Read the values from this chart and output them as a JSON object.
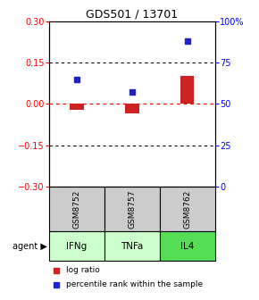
{
  "title": "GDS501 / 13701",
  "samples": [
    "GSM8752",
    "GSM8757",
    "GSM8762"
  ],
  "agents": [
    "IFNg",
    "TNFa",
    "IL4"
  ],
  "log_ratios": [
    -0.02,
    -0.035,
    0.1
  ],
  "percentile_ranks": [
    65,
    57,
    88
  ],
  "left_ylim": [
    -0.3,
    0.3
  ],
  "left_yticks": [
    -0.3,
    -0.15,
    0,
    0.15,
    0.3
  ],
  "right_ylim": [
    0,
    100
  ],
  "right_yticks": [
    0,
    25,
    50,
    75,
    100
  ],
  "right_yticklabels": [
    "0",
    "25",
    "50",
    "75",
    "100%"
  ],
  "bar_color_red": "#cc2222",
  "bar_color_blue": "#2222cc",
  "agent_colors": [
    "#ccffcc",
    "#ccffcc",
    "#55dd55"
  ],
  "sample_bg": "#cccccc",
  "legend_red_label": "log ratio",
  "legend_blue_label": "percentile rank within the sample"
}
